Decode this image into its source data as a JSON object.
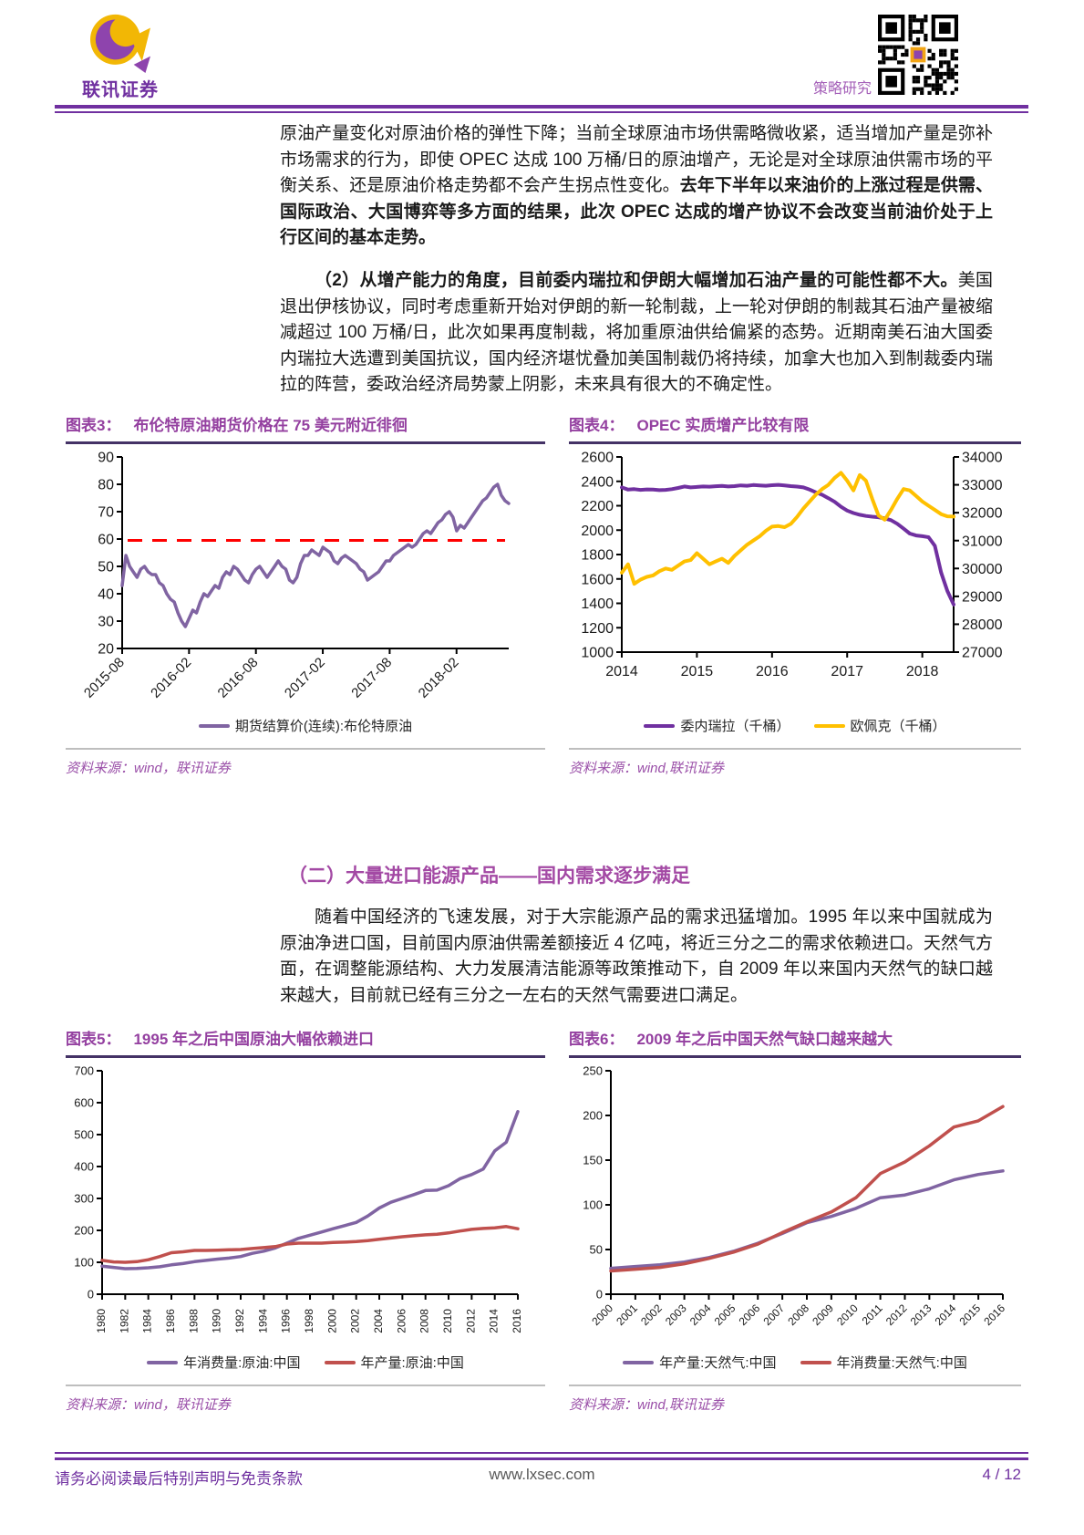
{
  "header": {
    "brand": "联讯证券",
    "report_type": "策略研究"
  },
  "paragraphs": {
    "p1_normal": "原油产量变化对原油价格的弹性下降；当前全球原油市场供需略微收紧，适当增加产量是弥补市场需求的行为，即使 OPEC 达成 100 万桶/日的原油增产，无论是对全球原油供需市场的平衡关系、还是原油价格走势都不会产生拐点性变化。",
    "p1_bold": "去年下半年以来油价的上涨过程是供需、国际政治、大国博弈等多方面的结果，此次 OPEC 达成的增产协议不会改变当前油价处于上行区间的基本走势。",
    "p2_bold": "（2）从增产能力的角度，目前委内瑞拉和伊朗大幅增加石油产量的可能性都不大。",
    "p2_normal": "美国退出伊核协议，同时考虑重新开始对伊朗的新一轮制裁，上一轮对伊朗的制裁其石油产量被缩减超过 100 万桶/日，此次如果再度制裁，将加重原油供给偏紧的态势。近期南美石油大国委内瑞拉大选遭到美国抗议，国内经济堪忧叠加美国制裁仍将持续，加拿大也加入到制裁委内瑞拉的阵营，委政治经济局势蒙上阴影，未来具有很大的不确定性。",
    "section2_heading": "（二）大量进口能源产品——国内需求逐步满足",
    "p3": "随着中国经济的飞速发展，对于大宗能源产品的需求迅猛增加。1995 年以来中国就成为原油净进口国，目前国内原油供需差额接近 4 亿吨，将近三分之二的需求依赖进口。天然气方面，在调整能源结构、大力发展清洁能源等政策推动下，自 2009 年以来国内天然气的缺口越来越大，目前就已经有三分之一左右的天然气需要进口满足。"
  },
  "figures": [
    {
      "label": "图表3：",
      "title": "布伦特原油期货价格在 75 美元附近徘徊",
      "source": "资料来源：wind，联讯证券"
    },
    {
      "label": "图表4：",
      "title": "OPEC 实质增产比较有限",
      "source": "资料来源：wind,联讯证券"
    },
    {
      "label": "图表5：",
      "title": "1995 年之后中国原油大幅依赖进口",
      "source": "资料来源：wind，联讯证券"
    },
    {
      "label": "图表6：",
      "title": "2009 年之后中国天然气缺口越来越大",
      "source": "资料来源：wind,联讯证券"
    }
  ],
  "footer": {
    "disclaimer": "请务必阅读最后特别声明与免责条款",
    "website": "www.lxsec.com",
    "page": "4 / 12"
  },
  "colors": {
    "accent_purple": "#7030A0",
    "title_purple": "#9440A0",
    "line_purple_light": "#8064A2",
    "line_purple_dark": "#7030A0",
    "line_red": "#C0504D",
    "line_yellow": "#FFC000",
    "ref_line_red": "#FF0000",
    "source_purple": "#9A4FA8"
  },
  "chart_data": [
    {
      "type": "line",
      "title": "布伦特原油期货价格在 75 美元附近徘徊",
      "x_start": "2015-08",
      "x_end": "2018-06",
      "y_left": {
        "min": 20,
        "max": 90,
        "step": 10
      },
      "x_ticks": {
        "labels": [
          "2015-08",
          "2016-02",
          "2016-08",
          "2017-02",
          "2017-08",
          "2018-02"
        ],
        "f0": 0,
        "df": 0.173
      },
      "ref_line": {
        "value": 59.5,
        "color": "#FF0000"
      },
      "series": [
        {
          "name": "期货结算价(连续):布伦特原油",
          "color": "#8064A2",
          "axis": "left",
          "values": [
            43,
            54,
            50,
            48,
            46,
            49,
            50,
            48,
            47,
            47,
            44,
            43,
            40,
            38,
            37,
            33,
            30,
            28,
            31,
            34,
            33,
            37,
            40,
            39,
            41,
            43,
            42,
            46,
            48,
            47,
            50,
            49,
            47,
            45,
            44,
            47,
            49,
            50,
            48,
            46,
            48,
            50,
            52,
            50,
            49,
            45,
            44,
            46,
            51,
            54,
            54,
            56,
            55,
            54,
            57,
            56,
            55,
            52,
            51,
            53,
            54,
            53,
            52,
            51,
            49,
            48,
            45,
            46,
            47,
            48,
            50,
            52,
            52,
            54,
            55,
            56,
            57,
            58,
            57,
            58,
            60,
            62,
            63,
            62,
            64,
            66,
            67,
            69,
            70,
            68,
            63,
            65,
            64,
            66,
            68,
            70,
            72,
            74,
            75,
            77,
            79,
            80,
            76,
            74,
            73
          ]
        }
      ]
    },
    {
      "type": "line",
      "title": "OPEC 实质增产比较有限",
      "x_start": "2014-01",
      "x_end": "2018-06",
      "y_left": {
        "min": 1000,
        "max": 2600,
        "step": 200
      },
      "y_right": {
        "min": 27000,
        "max": 34000,
        "step": 1000
      },
      "x_ticks": {
        "labels": [
          "2014",
          "2015",
          "2016",
          "2017",
          "2018"
        ],
        "f0": 0,
        "df": 0.2264
      },
      "series": [
        {
          "name": "委内瑞拉（千桶）",
          "color": "#7030A0",
          "axis": "left",
          "values": [
            2350,
            2332,
            2336,
            2330,
            2334,
            2332,
            2328,
            2330,
            2336,
            2346,
            2358,
            2350,
            2354,
            2358,
            2356,
            2360,
            2362,
            2358,
            2361,
            2367,
            2364,
            2370,
            2367,
            2364,
            2368,
            2371,
            2366,
            2361,
            2357,
            2350,
            2332,
            2310,
            2290,
            2262,
            2232,
            2192,
            2160,
            2140,
            2126,
            2116,
            2110,
            2106,
            2096,
            2082,
            2052,
            2012,
            1972,
            1956,
            1950,
            1942,
            1872,
            1652,
            1502,
            1390
          ]
        },
        {
          "name": "欧佩克（千桶）",
          "color": "#FFC000",
          "axis": "right",
          "values": [
            29850,
            30150,
            29450,
            29600,
            29700,
            29750,
            29900,
            30000,
            29950,
            30100,
            30250,
            30300,
            30550,
            30350,
            30150,
            30250,
            30350,
            30200,
            30450,
            30650,
            30850,
            31000,
            31150,
            31350,
            31500,
            31520,
            31480,
            31600,
            31850,
            32150,
            32400,
            32650,
            32850,
            33000,
            33250,
            33430,
            33150,
            32800,
            33350,
            33150,
            32500,
            31900,
            31750,
            32100,
            32500,
            32850,
            32800,
            32600,
            32400,
            32250,
            32100,
            31950,
            31870,
            31860
          ]
        }
      ]
    },
    {
      "type": "line",
      "title": "1995 年之后中国原油大幅依赖进口",
      "x_start": 1980,
      "x_end": 2016,
      "y_left": {
        "min": 0,
        "max": 700,
        "step": 100
      },
      "x_ticks": {
        "labels": [
          "1980",
          "1982",
          "1984",
          "1986",
          "1988",
          "1990",
          "1992",
          "1994",
          "1996",
          "1998",
          "2000",
          "2002",
          "2004",
          "2006",
          "2008",
          "2010",
          "2012",
          "2014",
          "2016"
        ],
        "f0": 0,
        "df": 0.05556
      },
      "series": [
        {
          "name": "年消费量:原油:中国",
          "color": "#8064A2",
          "axis": "left",
          "values": [
            88,
            84,
            80,
            81,
            83,
            86,
            92,
            96,
            102,
            106,
            110,
            113,
            118,
            128,
            135,
            145,
            160,
            175,
            185,
            195,
            205,
            215,
            225,
            245,
            270,
            288,
            300,
            312,
            325,
            326,
            340,
            362,
            375,
            392,
            449,
            476,
            572
          ]
        },
        {
          "name": "年产量:原油:中国",
          "color": "#C0504D",
          "axis": "left",
          "values": [
            106,
            101,
            100,
            102,
            108,
            118,
            130,
            133,
            137,
            137,
            138,
            139,
            140,
            143,
            146,
            149,
            157,
            160,
            160,
            160,
            162,
            163,
            165,
            168,
            172,
            176,
            180,
            183,
            186,
            188,
            192,
            198,
            203,
            206,
            208,
            212,
            205
          ]
        }
      ]
    },
    {
      "type": "line",
      "title": "2009 年之后中国天然气缺口越来越大",
      "x_start": 2000,
      "x_end": 2016,
      "y_left": {
        "min": 0,
        "max": 250,
        "step": 50
      },
      "x_ticks": {
        "labels": [
          "2000",
          "2001",
          "2002",
          "2003",
          "2004",
          "2005",
          "2006",
          "2007",
          "2008",
          "2009",
          "2010",
          "2011",
          "2012",
          "2013",
          "2014",
          "2015",
          "2016"
        ],
        "f0": 0,
        "df": 0.0625
      },
      "series": [
        {
          "name": "年产量:天然气:中国",
          "color": "#8064A2",
          "axis": "left",
          "values": [
            29,
            31,
            33,
            36,
            41,
            48,
            57,
            68,
            80,
            87,
            96,
            108,
            111,
            118,
            128,
            134,
            138
          ]
        },
        {
          "name": "年消费量:天然气:中国",
          "color": "#C0504D",
          "axis": "left",
          "values": [
            26,
            28,
            30,
            34,
            40,
            47,
            56,
            69,
            81,
            92,
            108,
            135,
            148,
            166,
            187,
            194,
            210
          ]
        }
      ]
    }
  ]
}
